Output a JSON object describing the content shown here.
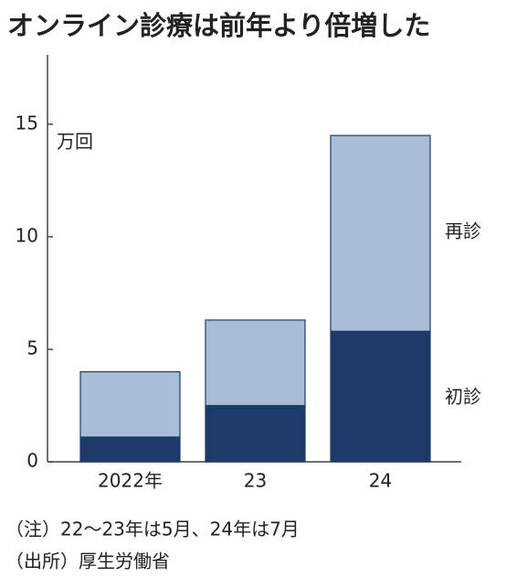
{
  "chart_data": {
    "type": "stacked_bar",
    "title": "オンライン診療は前年より倍増した",
    "unit": "万回",
    "categories": [
      "2022年",
      "23",
      "24"
    ],
    "series": [
      {
        "name": "初診",
        "color": "#1d3a68",
        "values": [
          1.1,
          2.5,
          5.8
        ]
      },
      {
        "name": "再診",
        "color": "#a9bed6",
        "values": [
          2.9,
          3.8,
          8.7
        ]
      }
    ],
    "ylim": [
      0,
      18
    ],
    "yticks": [
      0,
      5,
      10,
      15
    ],
    "notes": [
      "（注）22～23年は5月、24年は7月",
      "（出所）厚生労働省"
    ]
  }
}
